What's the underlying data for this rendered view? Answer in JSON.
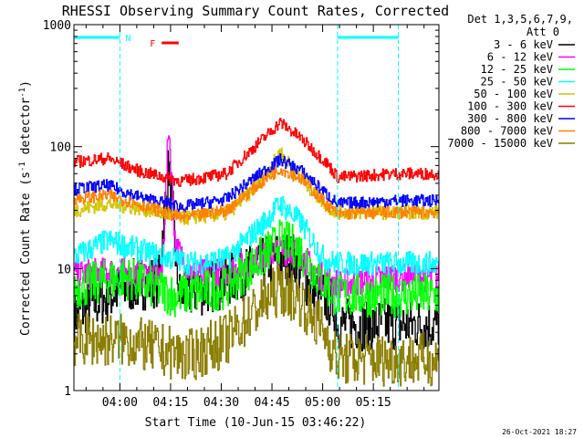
{
  "chart_data": {
    "type": "line",
    "title": "RHESSI Observing Summary Count Rates, Corrected",
    "xlabel": "Start Time (10-Jun-15 03:46:22)",
    "ylabel": "Corrected Count Rate (s⁻¹ detector⁻¹)",
    "ylabel_main": "Corrected Count Rate (s",
    "ylabel_mid": " detector",
    "ylabel_close": ")",
    "ylabel_sup": "-1",
    "yscale": "log",
    "ylim": [
      1,
      1000
    ],
    "xlim_min": [
      0,
      108
    ],
    "x_ticks": [
      {
        "min": 13.6,
        "label": "04:00"
      },
      {
        "min": 28.6,
        "label": "04:15"
      },
      {
        "min": 43.6,
        "label": "04:30"
      },
      {
        "min": 58.6,
        "label": "04:45"
      },
      {
        "min": 73.6,
        "label": "05:00"
      },
      {
        "min": 88.6,
        "label": "05:15"
      }
    ],
    "y_ticks": [
      {
        "value": 1,
        "label": "1"
      },
      {
        "value": 10,
        "label": "10"
      },
      {
        "value": 100,
        "label": "100"
      },
      {
        "value": 1000,
        "label": "1000"
      }
    ],
    "legend_header": [
      "Det 1,3,5,6,7,9,",
      "Att 0"
    ],
    "legend_position": "right",
    "timestamp": "26-Oct-2021 18:27",
    "annotations": {
      "night_label": "N",
      "flare_label": "F",
      "night_intervals_min": [
        [
          0,
          13.6
        ],
        [
          78,
          96
        ]
      ],
      "flare_interval_min": [
        26,
        31
      ]
    },
    "series": [
      {
        "name": "3 - 6 keV",
        "color": "#000000",
        "keyframes": [
          [
            0,
            4.2
          ],
          [
            15,
            7
          ],
          [
            25,
            8
          ],
          [
            28,
            70
          ],
          [
            31,
            6
          ],
          [
            40,
            7
          ],
          [
            50,
            9
          ],
          [
            60,
            12.5
          ],
          [
            65,
            12
          ],
          [
            70,
            7
          ],
          [
            77,
            5
          ],
          [
            78,
            3.5
          ],
          [
            95,
            3.5
          ]
        ],
        "noise": 0.22
      },
      {
        "name": "6 - 12 keV",
        "color": "#ff00ff",
        "keyframes": [
          [
            0,
            9
          ],
          [
            12,
            9.5
          ],
          [
            20,
            9
          ],
          [
            26,
            9
          ],
          [
            28,
            150
          ],
          [
            30,
            15
          ],
          [
            35,
            9
          ],
          [
            45,
            9.5
          ],
          [
            52,
            11
          ],
          [
            60,
            14
          ],
          [
            66,
            14
          ],
          [
            72,
            9
          ],
          [
            78,
            7.5
          ],
          [
            95,
            8.5
          ]
        ],
        "noise": 0.12
      },
      {
        "name": "12 - 25 keV",
        "color": "#00ff00",
        "keyframes": [
          [
            0,
            7
          ],
          [
            15,
            8.5
          ],
          [
            30,
            6
          ],
          [
            45,
            7
          ],
          [
            55,
            12
          ],
          [
            61,
            17
          ],
          [
            66,
            15
          ],
          [
            73,
            8
          ],
          [
            78,
            6
          ],
          [
            95,
            6
          ]
        ],
        "noise": 0.18
      },
      {
        "name": "25 - 50 keV",
        "color": "#00ffff",
        "keyframes": [
          [
            0,
            12.5
          ],
          [
            10,
            17
          ],
          [
            20,
            14
          ],
          [
            35,
            11
          ],
          [
            45,
            12
          ],
          [
            55,
            22
          ],
          [
            61,
            34
          ],
          [
            67,
            24
          ],
          [
            74,
            12
          ],
          [
            78,
            11
          ],
          [
            95,
            11
          ]
        ],
        "noise": 0.1
      },
      {
        "name": "50 - 100 keV",
        "color": "#d4c400",
        "keyframes": [
          [
            0,
            30
          ],
          [
            10,
            34
          ],
          [
            20,
            31
          ],
          [
            32,
            26
          ],
          [
            45,
            28
          ],
          [
            55,
            50
          ],
          [
            61,
            90
          ],
          [
            67,
            55
          ],
          [
            75,
            32
          ],
          [
            78,
            29
          ],
          [
            95,
            29
          ]
        ],
        "noise": 0.06
      },
      {
        "name": "100 - 300 keV",
        "color": "#ff0000",
        "keyframes": [
          [
            0,
            75
          ],
          [
            10,
            80
          ],
          [
            20,
            62
          ],
          [
            32,
            52
          ],
          [
            45,
            60
          ],
          [
            55,
            110
          ],
          [
            61,
            158
          ],
          [
            67,
            118
          ],
          [
            75,
            72
          ],
          [
            78,
            56
          ],
          [
            95,
            60
          ]
        ],
        "noise": 0.05
      },
      {
        "name": "300 - 800 keV",
        "color": "#0000ff",
        "keyframes": [
          [
            0,
            45
          ],
          [
            10,
            48
          ],
          [
            20,
            38
          ],
          [
            32,
            32
          ],
          [
            45,
            37
          ],
          [
            55,
            60
          ],
          [
            61,
            78
          ],
          [
            67,
            64
          ],
          [
            75,
            40
          ],
          [
            78,
            34
          ],
          [
            95,
            36
          ]
        ],
        "noise": 0.05
      },
      {
        "name": "800 - 7000 keV",
        "color": "#ff8000",
        "keyframes": [
          [
            0,
            37
          ],
          [
            10,
            40
          ],
          [
            20,
            33
          ],
          [
            32,
            26
          ],
          [
            45,
            30
          ],
          [
            55,
            50
          ],
          [
            61,
            66
          ],
          [
            67,
            55
          ],
          [
            75,
            33
          ],
          [
            78,
            28
          ],
          [
            95,
            29
          ]
        ],
        "noise": 0.05
      },
      {
        "name": "7000 - 15000 keV",
        "color": "#8b7d00",
        "keyframes": [
          [
            0,
            2.6
          ],
          [
            15,
            2.6
          ],
          [
            24,
            2.2
          ],
          [
            34,
            1.9
          ],
          [
            45,
            2.6
          ],
          [
            55,
            5
          ],
          [
            61,
            7
          ],
          [
            67,
            5.5
          ],
          [
            74,
            3
          ],
          [
            78,
            1.8
          ],
          [
            95,
            1.8
          ]
        ],
        "noise": 0.22
      }
    ]
  }
}
